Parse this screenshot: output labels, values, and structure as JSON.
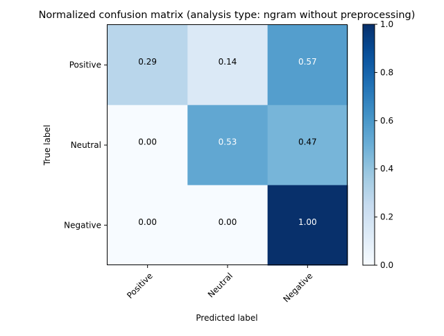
{
  "chart_data": {
    "type": "heatmap",
    "title": "Normalized confusion matrix (analysis type: ngram without preprocessing)",
    "xlabel": "Predicted label",
    "ylabel": "True label",
    "x_categories": [
      "Positive",
      "Neutral",
      "Negative"
    ],
    "y_categories": [
      "Positive",
      "Neutral",
      "Negative"
    ],
    "values": [
      [
        0.29,
        0.14,
        0.57
      ],
      [
        0.0,
        0.53,
        0.47
      ],
      [
        0.0,
        0.0,
        1.0
      ]
    ],
    "value_labels": [
      [
        "0.29",
        "0.14",
        "0.57"
      ],
      [
        "0.00",
        "0.53",
        "0.47"
      ],
      [
        "0.00",
        "0.00",
        "1.00"
      ]
    ],
    "colormap": "Blues",
    "vmin": 0.0,
    "vmax": 1.0,
    "colorbar_ticks": [
      "0.0",
      "0.2",
      "0.4",
      "0.6",
      "0.8",
      "1.0"
    ],
    "colors": {
      "text_dark": "#000000",
      "text_light": "#ffffff",
      "axis": "#000000"
    }
  }
}
